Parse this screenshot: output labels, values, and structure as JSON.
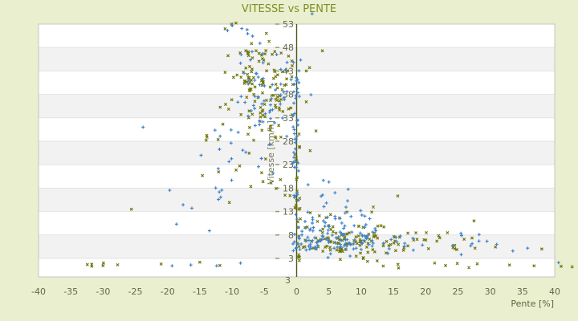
{
  "title": "VITESSE vs PENTE",
  "colors": {
    "background": "#e9efcf",
    "plot_background": "#ffffff",
    "band_gray": "#f2f2f2",
    "band_separator": "#e3e3e3",
    "plot_border": "#c6c6c6",
    "zero_axis_line": "#4f5a1c",
    "tick_dash": "#99996f",
    "title_text": "#7e8e24",
    "tick_text": "#63684a",
    "series_blue": "#3e82cc",
    "series_olive": "#6f7507"
  },
  "chart_data": {
    "type": "scatter",
    "title": "VITESSE vs PENTE",
    "xlabel": "Pente [%]",
    "ylabel": "Vitesse [km/h]",
    "xlim": [
      -40,
      40
    ],
    "ylim_ticks": [
      3,
      53
    ],
    "x_ticks": [
      -40,
      -35,
      -30,
      -25,
      -20,
      -15,
      -10,
      -5,
      0,
      5,
      10,
      15,
      20,
      25,
      30,
      35,
      40
    ],
    "y_ticks": [
      53,
      48,
      43,
      38,
      33,
      28,
      23,
      18,
      13,
      8,
      3
    ],
    "y_axis_end_label": "3",
    "zero_line_x": 0,
    "grid": "horizontal-bands",
    "legend": "none",
    "series": [
      {
        "name": "olive",
        "color": "#6f7507",
        "marker": "cross",
        "seed": 1337,
        "clusters": [
          {
            "type": "gauss",
            "n": 110,
            "cx": -4.8,
            "cy": 39.2,
            "sx": 2.7,
            "sy": 4.4,
            "clip": {
              "ymax": 53.6
            }
          },
          {
            "type": "uniform",
            "n": 14,
            "x": [
              -13,
              -4
            ],
            "y": [
              46,
              53.4
            ]
          },
          {
            "type": "uniform",
            "n": 16,
            "x": [
              -15,
              -4
            ],
            "y": [
              20,
              34
            ]
          },
          {
            "type": "uniform",
            "n": 24,
            "x": [
              -0.4,
              0.5
            ],
            "y": [
              0.8,
              32
            ]
          },
          {
            "type": "gauss",
            "n": 100,
            "cx": 8.5,
            "cy": 6.4,
            "sx": 5.0,
            "sy": 1.5,
            "clip": {
              "xmin": 0.3,
              "ymin": 2.3
            }
          },
          {
            "type": "gauss",
            "n": 24,
            "cx": 6.0,
            "cy": 10.5,
            "sx": 4.0,
            "sy": 2.0,
            "clip": {
              "xmin": 0.3
            }
          },
          {
            "type": "uniform",
            "n": 16,
            "x": [
              15,
              32
            ],
            "y": [
              4.3,
              8.5
            ]
          },
          {
            "type": "uniform",
            "n": 10,
            "x": [
              10,
              37
            ],
            "y": [
              0.8,
              2.6
            ]
          },
          {
            "type": "uniform",
            "n": 6,
            "x": [
              -35,
              -27
            ],
            "y": [
              1,
              2.6
            ]
          },
          {
            "type": "uniform",
            "n": 8,
            "x": [
              -13,
              -1
            ],
            "y": [
              12,
              20
            ]
          }
        ],
        "points": [
          [
            41,
            1.3
          ],
          [
            42.7,
            1.2
          ],
          [
            27.5,
            11
          ],
          [
            3,
            30.2
          ],
          [
            2.1,
            26
          ],
          [
            -21,
            1.8
          ],
          [
            -15,
            2.2
          ],
          [
            -11.9,
            1.5
          ],
          [
            4,
            47.3
          ],
          [
            1.5,
            43
          ],
          [
            -25.6,
            13.5
          ],
          [
            38,
            5
          ],
          [
            36.8,
            1.4
          ],
          [
            33,
            1.6
          ]
        ]
      },
      {
        "name": "blue",
        "color": "#3e82cc",
        "marker": "plus",
        "seed": 42,
        "clusters": [
          {
            "type": "uniform",
            "n": 50,
            "x": [
              -0.6,
              0.35
            ],
            "y": [
              4,
              45
            ]
          },
          {
            "type": "gauss",
            "n": 55,
            "cx": -4.5,
            "cy": 38.5,
            "sx": 2.8,
            "sy": 4.3,
            "clip": {
              "ymax": 53.4
            }
          },
          {
            "type": "uniform",
            "n": 10,
            "x": [
              -12,
              -5
            ],
            "y": [
              44,
              53
            ]
          },
          {
            "type": "uniform",
            "n": 20,
            "x": [
              -13,
              -2.5
            ],
            "y": [
              15,
              33
            ]
          },
          {
            "type": "uniform",
            "n": 9,
            "x": [
              -20,
              -10
            ],
            "y": [
              8,
              36
            ]
          },
          {
            "type": "gauss",
            "n": 95,
            "cx": 6.8,
            "cy": 6.8,
            "sx": 4.4,
            "sy": 1.6,
            "clip": {
              "xmin": 0.3,
              "ymin": 2.5
            }
          },
          {
            "type": "gauss",
            "n": 28,
            "cx": 5.0,
            "cy": 11.0,
            "sx": 3.2,
            "sy": 2.2,
            "clip": {
              "xmin": 0.3
            }
          },
          {
            "type": "uniform",
            "n": 13,
            "x": [
              14,
              30
            ],
            "y": [
              4.5,
              9
            ]
          },
          {
            "type": "uniform",
            "n": 10,
            "x": [
              0.8,
              9
            ],
            "y": [
              12,
              20
            ]
          }
        ],
        "points": [
          [
            2.4,
            55.2
          ],
          [
            40.6,
            2.1
          ],
          [
            31,
            6
          ],
          [
            33.5,
            4.6
          ],
          [
            -16.4,
            1.6
          ],
          [
            -12.4,
            1.4
          ],
          [
            -8.7,
            2.0
          ],
          [
            -19.3,
            1.4
          ],
          [
            35.8,
            5.2
          ],
          [
            25.5,
            3.8
          ],
          [
            -23.8,
            31
          ],
          [
            -14.8,
            25
          ]
        ]
      }
    ]
  }
}
